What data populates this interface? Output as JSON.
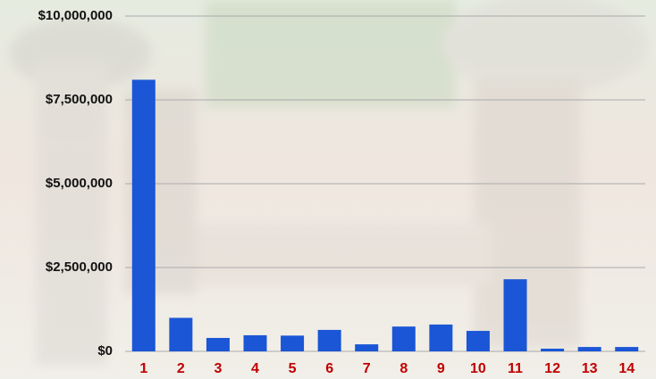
{
  "chart_data": {
    "type": "bar",
    "categories": [
      "1",
      "2",
      "3",
      "4",
      "5",
      "6",
      "7",
      "8",
      "9",
      "10",
      "11",
      "12",
      "13",
      "14"
    ],
    "values": [
      8100000,
      1000000,
      400000,
      480000,
      470000,
      640000,
      210000,
      740000,
      800000,
      610000,
      2150000,
      80000,
      130000,
      130000
    ],
    "color": "#1a56d6",
    "category_color": "#c00000",
    "ylim": [
      0,
      10000000
    ],
    "yticks": [
      {
        "value": 0,
        "label": "$0"
      },
      {
        "value": 2500000,
        "label": "$2,500,000"
      },
      {
        "value": 5000000,
        "label": "$5,000,000"
      },
      {
        "value": 7500000,
        "label": "$7,500,000"
      },
      {
        "value": 10000000,
        "label": "$10,000,000"
      }
    ],
    "grid": true
  }
}
